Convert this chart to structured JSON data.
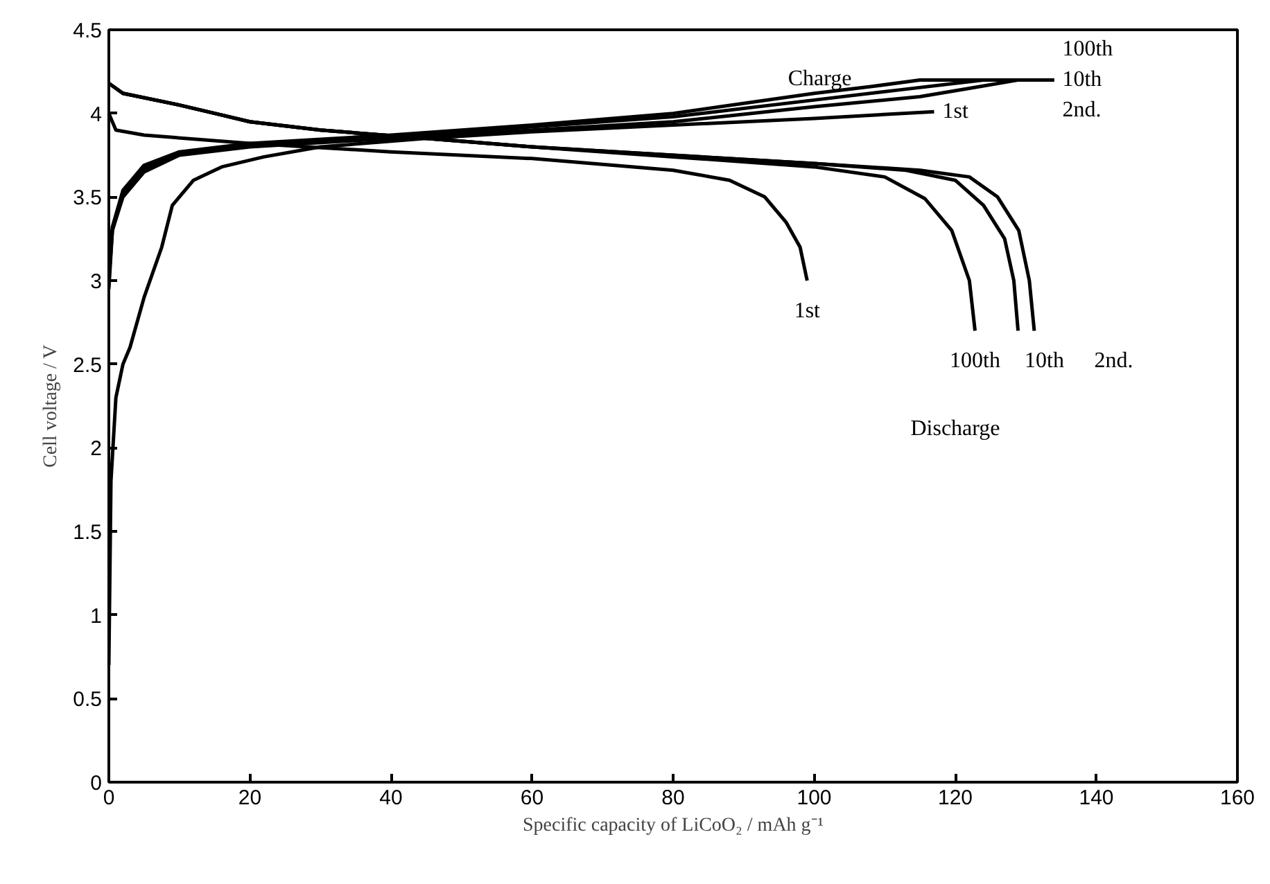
{
  "chart_data": {
    "type": "line",
    "xlabel": "Specific capacity of LiCoO₂ / mAh g⁻¹",
    "ylabel": "Cell voltage / V",
    "xlim": [
      0,
      160
    ],
    "ylim": [
      0,
      4.5
    ],
    "xticks": [
      0,
      20,
      40,
      60,
      80,
      100,
      120,
      140,
      160
    ],
    "yticks": [
      0,
      0.5,
      1,
      1.5,
      2,
      2.5,
      3,
      3.5,
      4,
      4.5
    ],
    "grid": false,
    "legend": false,
    "marker": "none",
    "line_style": "solid",
    "series": [
      {
        "name": "1st",
        "color": "#000000",
        "x": [
          0,
          0.3,
          1,
          2,
          3,
          5,
          7.5,
          9,
          12,
          16,
          22,
          30,
          45,
          60,
          80,
          100,
          117
        ],
        "values": [
          0.7,
          1.8,
          2.3,
          2.5,
          2.6,
          2.9,
          3.2,
          3.45,
          3.6,
          3.68,
          3.74,
          3.8,
          3.85,
          3.89,
          3.93,
          3.97,
          4.01
        ]
      },
      {
        "name": "2nd.",
        "color": "#000000",
        "x": [
          0,
          0.5,
          2,
          5,
          10,
          20,
          40,
          60,
          80,
          100,
          115,
          122,
          129,
          134
        ],
        "values": [
          2.95,
          3.3,
          3.5,
          3.65,
          3.75,
          3.8,
          3.85,
          3.9,
          3.95,
          4.04,
          4.1,
          4.15,
          4.2,
          4.2
        ]
      },
      {
        "name": "10th",
        "color": "#000000",
        "x": [
          0,
          0.5,
          2,
          5,
          10,
          20,
          40,
          60,
          80,
          100,
          112,
          124,
          134
        ],
        "values": [
          3.0,
          3.3,
          3.52,
          3.67,
          3.76,
          3.81,
          3.86,
          3.92,
          3.98,
          4.08,
          4.14,
          4.2,
          4.2
        ]
      },
      {
        "name": "100th",
        "color": "#000000",
        "x": [
          0,
          0.5,
          2,
          5,
          10,
          20,
          40,
          60,
          80,
          100,
          108,
          115,
          134
        ],
        "values": [
          3.05,
          3.32,
          3.54,
          3.69,
          3.77,
          3.82,
          3.87,
          3.93,
          4.0,
          4.12,
          4.16,
          4.2,
          4.2
        ]
      },
      {
        "name": "1st",
        "color": "#000000",
        "x": [
          0,
          1,
          5,
          20,
          40,
          60,
          80,
          88,
          93,
          96,
          98,
          99
        ],
        "values": [
          4.0,
          3.9,
          3.87,
          3.82,
          3.77,
          3.73,
          3.66,
          3.6,
          3.5,
          3.35,
          3.2,
          3.0
        ]
      },
      {
        "name": "2nd.",
        "color": "#000000",
        "x": [
          0,
          2,
          10,
          15,
          20,
          30,
          45,
          60,
          80,
          100,
          115,
          122,
          126,
          129,
          130.5,
          131.2
        ],
        "values": [
          4.18,
          4.12,
          4.05,
          4.0,
          3.95,
          3.9,
          3.85,
          3.8,
          3.75,
          3.7,
          3.66,
          3.62,
          3.5,
          3.3,
          3.0,
          2.7
        ]
      },
      {
        "name": "10th",
        "color": "#000000",
        "x": [
          0,
          2,
          10,
          15,
          20,
          30,
          45,
          60,
          80,
          100,
          113,
          120,
          124,
          127,
          128.3,
          128.9
        ],
        "values": [
          4.18,
          4.12,
          4.05,
          4.0,
          3.95,
          3.9,
          3.85,
          3.8,
          3.75,
          3.7,
          3.66,
          3.6,
          3.45,
          3.25,
          3.0,
          2.7
        ]
      },
      {
        "name": "100th",
        "color": "#000000",
        "x": [
          0,
          2,
          10,
          15,
          20,
          30,
          45,
          60,
          80,
          100,
          110,
          115.7,
          119.5,
          122,
          122.8
        ],
        "values": [
          4.18,
          4.12,
          4.05,
          4.0,
          3.95,
          3.9,
          3.85,
          3.8,
          3.74,
          3.68,
          3.62,
          3.49,
          3.3,
          3.0,
          2.7
        ]
      }
    ],
    "annotations": [
      "Charge",
      "Discharge"
    ]
  }
}
